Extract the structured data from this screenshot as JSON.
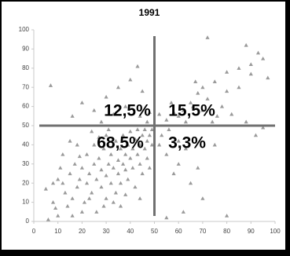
{
  "chart_data": {
    "type": "scatter",
    "title": "1991",
    "x": [
      72,
      88,
      93,
      95,
      90,
      85,
      80,
      75,
      70,
      68,
      65,
      62,
      60,
      58,
      66,
      72,
      78,
      82,
      88,
      95,
      92,
      76,
      70,
      55,
      52,
      57,
      63,
      85,
      97,
      90,
      80,
      74,
      67,
      52,
      55,
      60,
      58,
      65,
      70,
      62,
      55,
      80,
      68,
      53,
      56,
      60,
      75,
      63,
      7,
      16,
      25,
      30,
      38,
      44,
      47,
      40,
      35,
      45,
      20,
      28,
      43,
      48,
      33,
      5,
      8,
      9,
      10,
      12,
      13,
      15,
      16,
      17,
      18,
      19,
      20,
      21,
      22,
      22,
      23,
      24,
      25,
      25,
      26,
      27,
      28,
      28,
      29,
      30,
      30,
      31,
      32,
      32,
      33,
      34,
      34,
      35,
      35,
      36,
      36,
      37,
      37,
      38,
      38,
      39,
      39,
      40,
      40,
      41,
      41,
      42,
      42,
      43,
      43,
      44,
      44,
      45,
      45,
      46,
      46,
      47,
      47,
      48,
      48,
      49,
      49,
      18,
      12,
      14,
      26,
      30,
      20,
      10,
      24,
      33,
      15,
      11,
      27,
      36,
      44,
      8,
      19,
      23,
      31,
      29,
      38,
      16,
      6
    ],
    "y": [
      96,
      92,
      88,
      85,
      82,
      80,
      78,
      73,
      70,
      67,
      62,
      58,
      55,
      57,
      60,
      64,
      60,
      56,
      52,
      49,
      45,
      55,
      58,
      53,
      56,
      62,
      52,
      70,
      75,
      77,
      68,
      52,
      73,
      40,
      35,
      30,
      25,
      20,
      12,
      5,
      2,
      3,
      28,
      45,
      48,
      42,
      40,
      38,
      71,
      55,
      58,
      65,
      60,
      55,
      52,
      74,
      70,
      68,
      62,
      52,
      81,
      57,
      56,
      17,
      10,
      7,
      22,
      20,
      15,
      25,
      12,
      30,
      18,
      22,
      28,
      10,
      35,
      20,
      25,
      15,
      30,
      40,
      22,
      33,
      18,
      27,
      38,
      24,
      45,
      30,
      20,
      35,
      28,
      42,
      15,
      32,
      25,
      38,
      20,
      45,
      30,
      27,
      35,
      40,
      22,
      33,
      47,
      28,
      38,
      43,
      18,
      35,
      48,
      30,
      40,
      45,
      25,
      38,
      48,
      33,
      42,
      45,
      28,
      40,
      48,
      40,
      35,
      8,
      5,
      12,
      5,
      3,
      47,
      10,
      42,
      28,
      44,
      8,
      12,
      20,
      34,
      12,
      48,
      8,
      14,
      3,
      1
    ],
    "color": "#9a9a9a",
    "marker": "triangle",
    "xlim": [
      0,
      100
    ],
    "ylim": [
      0,
      100
    ],
    "xticks": [
      0,
      10,
      20,
      30,
      40,
      50,
      60,
      70,
      80,
      90,
      100
    ],
    "yticks": [
      0,
      10,
      20,
      30,
      40,
      50,
      60,
      70,
      80,
      90,
      100
    ],
    "grid": false,
    "hline": 50,
    "vline": 50,
    "line_color": "#707070",
    "annotations": [
      "12,5%",
      "15,5%",
      "68,5%",
      "3,3%"
    ]
  }
}
